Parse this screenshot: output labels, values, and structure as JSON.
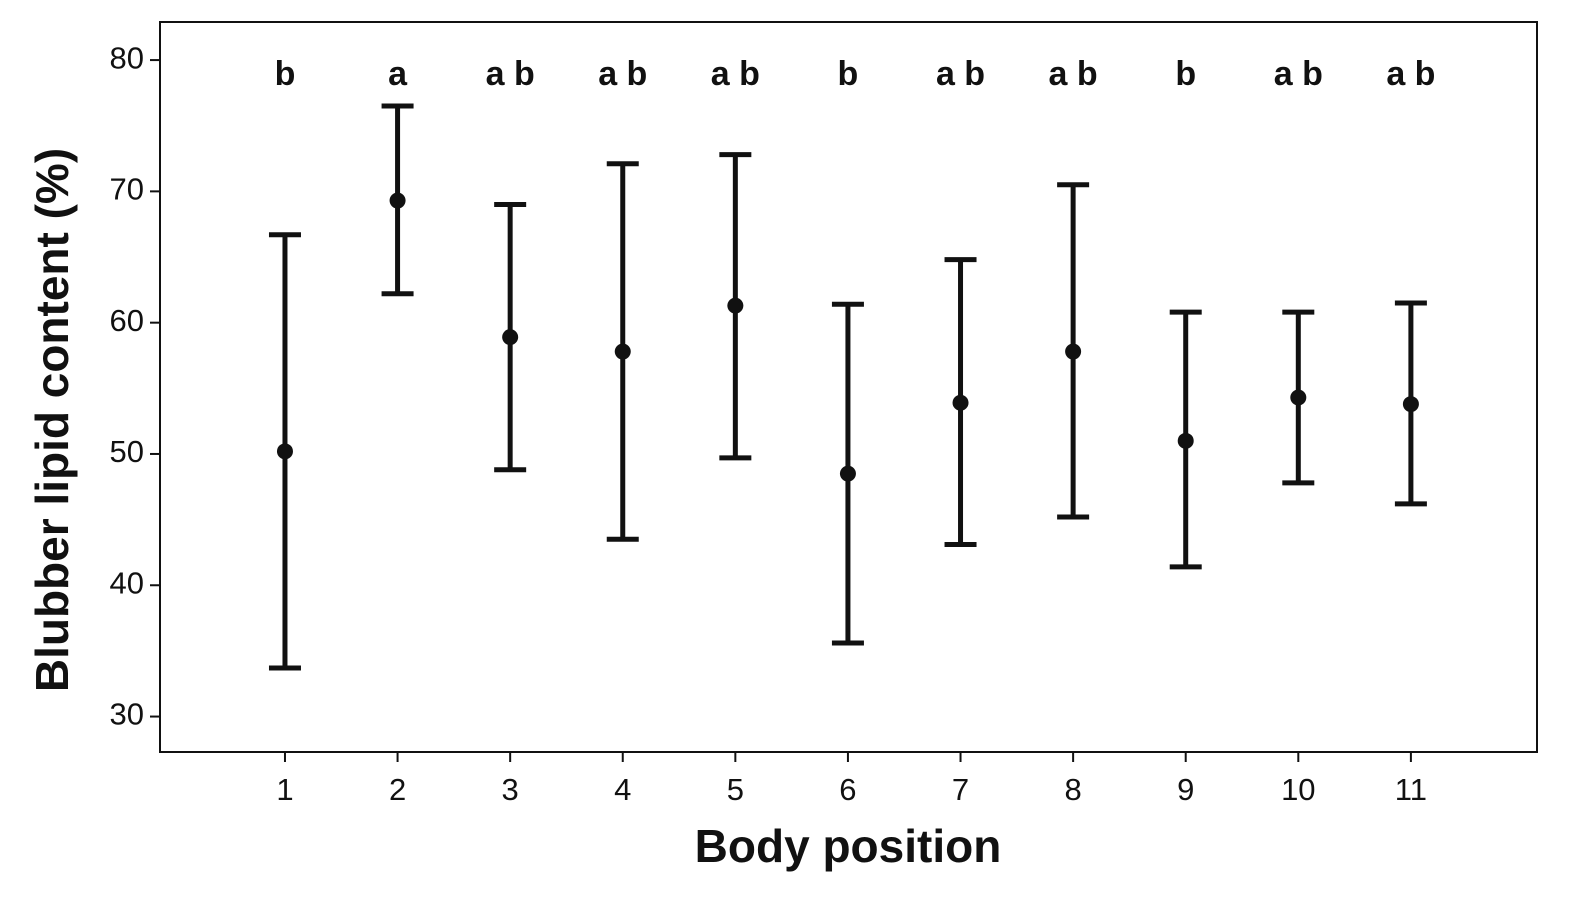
{
  "chart_data": {
    "type": "errorbar",
    "x_label": "Body position",
    "y_label": "Blubber lipid content (%)",
    "x": [
      1,
      2,
      3,
      4,
      5,
      6,
      7,
      8,
      9,
      10,
      11
    ],
    "series": [
      {
        "color": "#111111",
        "values": [
          50.2,
          69.3,
          58.9,
          57.8,
          61.3,
          48.5,
          53.9,
          57.8,
          51.0,
          54.3,
          53.8
        ],
        "upper": [
          66.7,
          76.5,
          69.0,
          72.1,
          72.8,
          61.4,
          64.8,
          70.5,
          60.8,
          60.8,
          61.5
        ],
        "lower": [
          33.7,
          62.2,
          48.8,
          43.5,
          49.7,
          35.6,
          43.1,
          45.2,
          41.4,
          47.8,
          46.2
        ]
      }
    ],
    "letters": [
      "b",
      "a",
      "a b",
      "a b",
      "a b",
      "b",
      "a b",
      "a b",
      "b",
      "a b",
      "a b"
    ],
    "xlim": [
      -0.11,
      12.12
    ],
    "xticks": [
      1,
      2,
      3,
      4,
      5,
      6,
      7,
      8,
      9,
      10,
      11
    ],
    "ylim": [
      27.3,
      82.9
    ],
    "yticks": [
      30,
      40,
      50,
      60,
      70,
      80
    ],
    "grid": false
  }
}
